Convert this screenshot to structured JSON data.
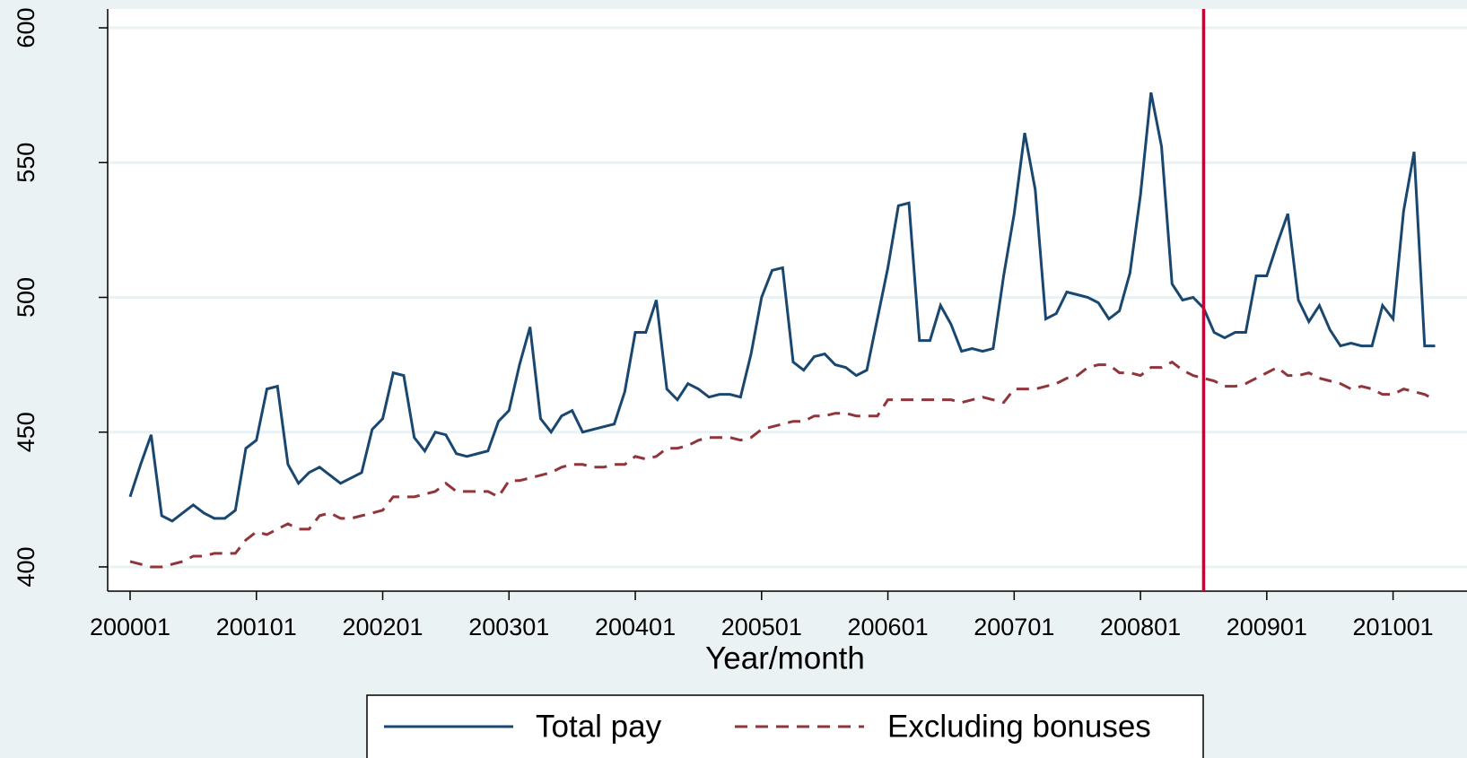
{
  "chart_data": {
    "type": "line",
    "x_label": "Year/month",
    "x": [
      "200001",
      "200002",
      "200003",
      "200004",
      "200005",
      "200006",
      "200007",
      "200008",
      "200009",
      "200010",
      "200011",
      "200012",
      "200101",
      "200102",
      "200103",
      "200104",
      "200105",
      "200106",
      "200107",
      "200108",
      "200109",
      "200110",
      "200111",
      "200112",
      "200201",
      "200202",
      "200203",
      "200204",
      "200205",
      "200206",
      "200207",
      "200208",
      "200209",
      "200210",
      "200211",
      "200212",
      "200301",
      "200302",
      "200303",
      "200304",
      "200305",
      "200306",
      "200307",
      "200308",
      "200309",
      "200310",
      "200311",
      "200312",
      "200401",
      "200402",
      "200403",
      "200404",
      "200405",
      "200406",
      "200407",
      "200408",
      "200409",
      "200410",
      "200411",
      "200412",
      "200501",
      "200502",
      "200503",
      "200504",
      "200505",
      "200506",
      "200507",
      "200508",
      "200509",
      "200510",
      "200511",
      "200512",
      "200601",
      "200602",
      "200603",
      "200604",
      "200605",
      "200606",
      "200607",
      "200608",
      "200609",
      "200610",
      "200611",
      "200612",
      "200701",
      "200702",
      "200703",
      "200704",
      "200705",
      "200706",
      "200707",
      "200708",
      "200709",
      "200710",
      "200711",
      "200712",
      "200801",
      "200802",
      "200803",
      "200804",
      "200805",
      "200806",
      "200807",
      "200808",
      "200809",
      "200810",
      "200811",
      "200812",
      "200901",
      "200902",
      "200903",
      "200904",
      "200905",
      "200906",
      "200907",
      "200908",
      "200909",
      "200910",
      "200911",
      "200912",
      "201001",
      "201002",
      "201003",
      "201004",
      "201005"
    ],
    "series": [
      {
        "name": "Total pay",
        "color": "#1a476f",
        "dash": false,
        "values": [
          426,
          438,
          449,
          419,
          417,
          420,
          423,
          420,
          418,
          418,
          421,
          444,
          447,
          466,
          467,
          438,
          431,
          435,
          437,
          434,
          431,
          433,
          435,
          451,
          455,
          472,
          471,
          448,
          443,
          450,
          449,
          442,
          441,
          442,
          443,
          454,
          458,
          475,
          489,
          455,
          450,
          456,
          458,
          450,
          451,
          452,
          453,
          465,
          487,
          487,
          499,
          466,
          462,
          468,
          466,
          463,
          464,
          464,
          463,
          479,
          500,
          510,
          511,
          476,
          473,
          478,
          479,
          475,
          474,
          471,
          473,
          492,
          511,
          534,
          535,
          484,
          484,
          497,
          490,
          480,
          481,
          480,
          481,
          508,
          531,
          561,
          540,
          492,
          494,
          502,
          501,
          500,
          498,
          492,
          495,
          509,
          538,
          576,
          556,
          505,
          499,
          500,
          496,
          487,
          485,
          487,
          487,
          508,
          508,
          520,
          531,
          499,
          491,
          497,
          488,
          482,
          483,
          482,
          482,
          497,
          492,
          532,
          554,
          482,
          482
        ]
      },
      {
        "name": "Excluding bonuses",
        "color": "#90353b",
        "dash": true,
        "values": [
          402,
          401,
          400,
          400,
          401,
          402,
          404,
          404,
          405,
          405,
          405,
          410,
          413,
          412,
          414,
          416,
          414,
          414,
          419,
          420,
          418,
          418,
          419,
          420,
          421,
          426,
          426,
          426,
          427,
          428,
          431,
          428,
          428,
          428,
          428,
          426,
          432,
          432,
          433,
          434,
          435,
          437,
          438,
          438,
          437,
          437,
          438,
          438,
          441,
          440,
          441,
          444,
          444,
          445,
          447,
          448,
          448,
          448,
          447,
          448,
          451,
          452,
          453,
          454,
          454,
          456,
          456,
          457,
          457,
          456,
          456,
          456,
          462,
          462,
          462,
          462,
          462,
          462,
          462,
          461,
          462,
          463,
          462,
          461,
          466,
          466,
          466,
          467,
          468,
          470,
          471,
          474,
          475,
          475,
          472,
          472,
          471,
          474,
          474,
          476,
          473,
          471,
          470,
          469,
          467,
          467,
          468,
          470,
          472,
          474,
          471,
          471,
          472,
          470,
          469,
          468,
          466,
          467,
          466,
          464,
          464,
          466,
          465,
          464,
          462
        ]
      }
    ],
    "xticks": [
      "200001",
      "200101",
      "200201",
      "200301",
      "200401",
      "200501",
      "200601",
      "200701",
      "200801",
      "200901",
      "201001"
    ],
    "ylim": [
      391,
      607
    ],
    "yticks": [
      400,
      450,
      500,
      550,
      600
    ],
    "grid": true,
    "vline": {
      "x": "200807",
      "color": "#c10534"
    }
  }
}
